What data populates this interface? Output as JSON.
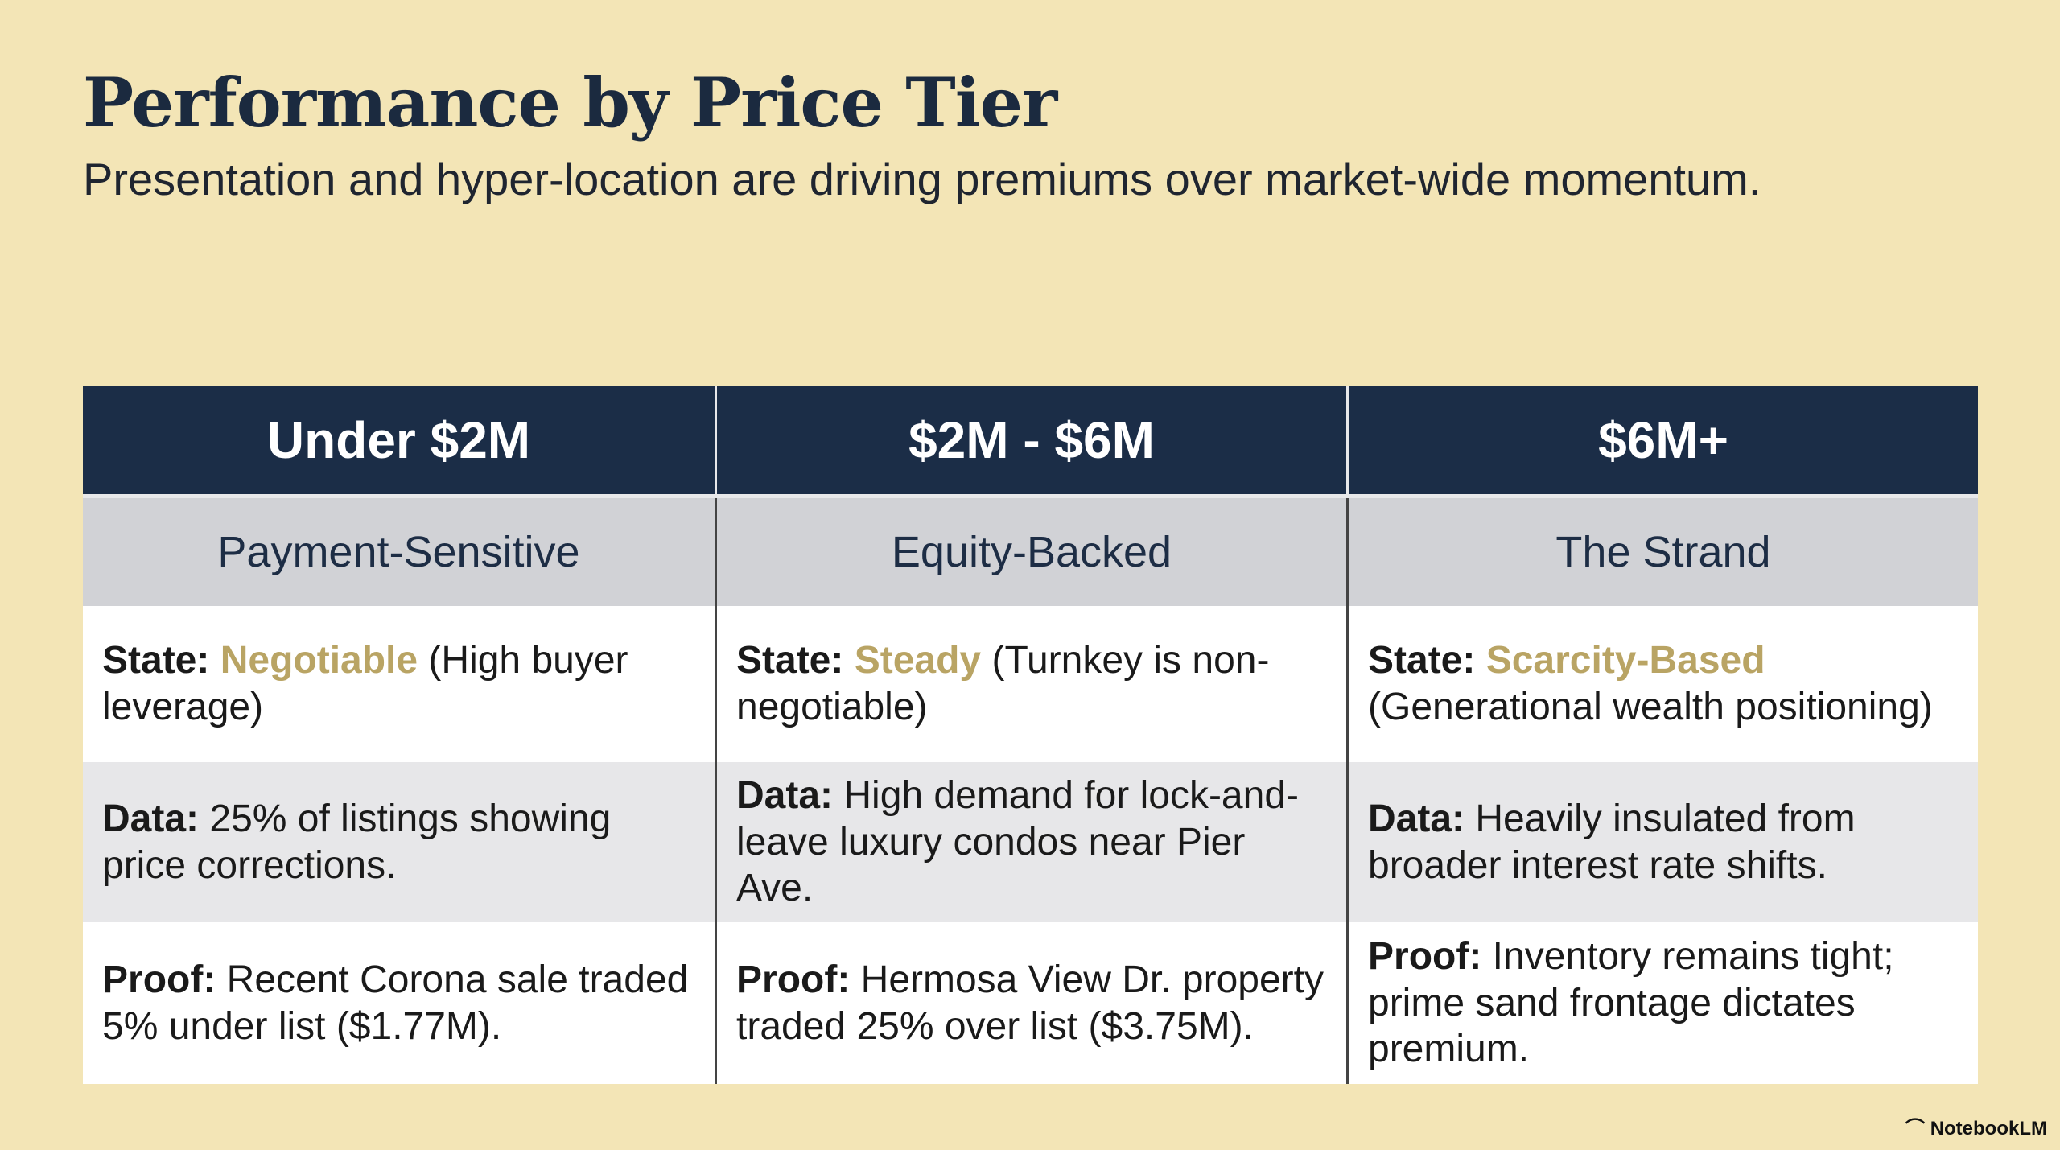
{
  "header": {
    "title": "Performance by Price Tier",
    "subtitle": "Presentation and hyper-location are driving premiums over market-wide momentum."
  },
  "table": {
    "columns": [
      "Under $2M",
      "$2M - $6M",
      "$6M+"
    ],
    "subheaders": [
      "Payment-Sensitive",
      "Equity-Backed",
      "The Strand"
    ],
    "rows": [
      [
        {
          "label": "State:",
          "highlight": "Negotiable",
          "text": "(High buyer leverage)"
        },
        {
          "label": "State:",
          "highlight": "Steady",
          "text": "(Turnkey is non-negotiable)"
        },
        {
          "label": "State:",
          "highlight": "Scarcity-Based",
          "text": "(Generational wealth positioning)"
        }
      ],
      [
        {
          "label": "Data:",
          "text": "25% of listings showing price corrections."
        },
        {
          "label": "Data:",
          "text": "High demand for lock-and-leave luxury condos near Pier Ave."
        },
        {
          "label": "Data:",
          "text": "Heavily insulated from broader interest rate shifts."
        }
      ],
      [
        {
          "label": "Proof:",
          "text": "Recent Corona sale traded 5% under list ($1.77M)."
        },
        {
          "label": "Proof:",
          "text": "Hermosa View Dr. property traded 25% over list ($3.75M)."
        },
        {
          "label": "Proof:",
          "text": "Inventory remains tight; prime sand frontage dictates premium."
        }
      ]
    ]
  },
  "footer": {
    "brand": "NotebookLM"
  }
}
